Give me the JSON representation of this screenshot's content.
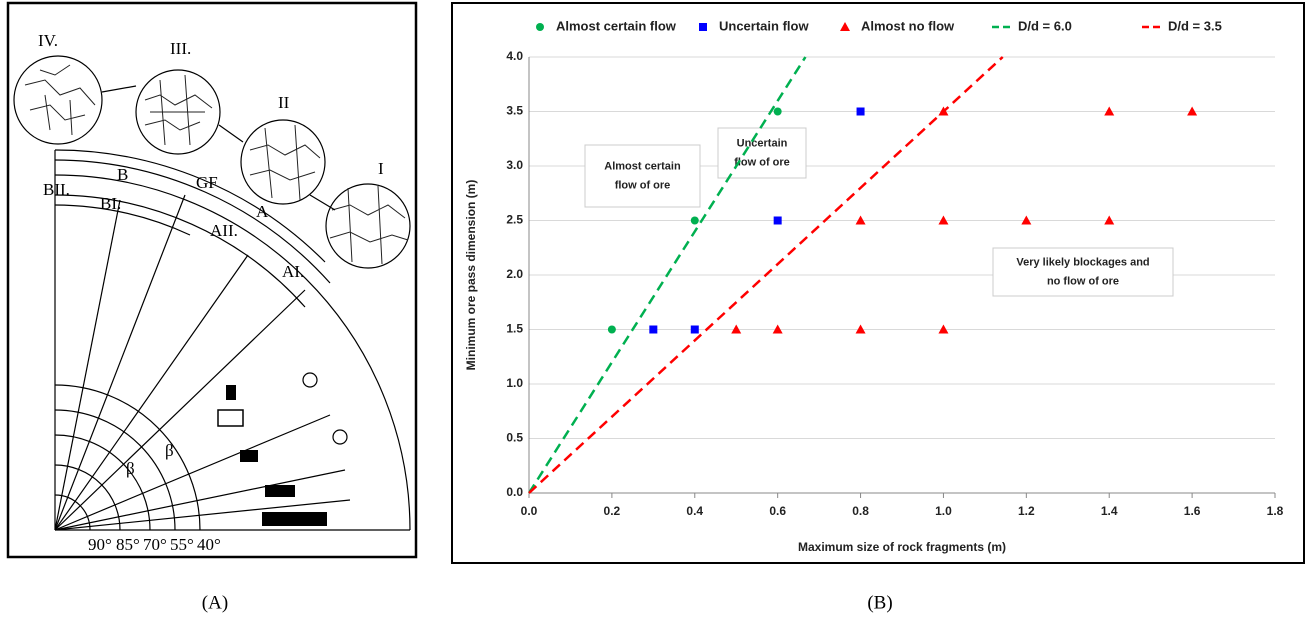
{
  "diagram": {
    "labels": [
      "IV.",
      "III.",
      "II",
      "I",
      "B",
      "GF",
      "A",
      "BII.",
      "BI.",
      "AII.",
      "AI.",
      "β",
      "β",
      "90°",
      "85°",
      "70°",
      "55°",
      "40°"
    ]
  },
  "captions": [
    "(A)",
    "(B)"
  ],
  "chart_data": {
    "type": "scatter",
    "x_label": "Maximum size of rock fragments (m)",
    "y_label": "Minimum ore pass dimension (m)",
    "xlim": [
      0,
      1.8
    ],
    "xticks": [
      {
        "value": 0,
        "label": "0.0"
      },
      0.2,
      0.4,
      0.6,
      0.8,
      {
        "value": 1,
        "label": "1.0"
      },
      1.2,
      1.4,
      1.6,
      1.8
    ],
    "ylim": [
      0,
      4
    ],
    "yticks": [
      {
        "value": 0,
        "label": "0.0"
      },
      0.5,
      {
        "value": 1,
        "label": "1.0"
      },
      1.5,
      {
        "value": 2,
        "label": "2.0"
      },
      2.5,
      {
        "value": 3,
        "label": "3.0"
      },
      3.5,
      {
        "value": 4,
        "label": "4.0"
      }
    ],
    "grid": true,
    "legend": "top",
    "series": [
      {
        "name": "Almost certain flow",
        "color": "#00b050",
        "marker": "circle",
        "x": [
          0.2,
          0.4,
          0.6
        ],
        "values": [
          1.5,
          2.5,
          3.5
        ]
      },
      {
        "name": "Uncertain flow",
        "color": "#0000ff",
        "marker": "square",
        "x": [
          0.3,
          0.4,
          0.6,
          0.8
        ],
        "values": [
          1.5,
          1.5,
          2.5,
          3.5
        ]
      },
      {
        "name": "Almost no flow",
        "color": "#ff0000",
        "marker": "triangle",
        "x": [
          0.5,
          0.6,
          0.8,
          1.0,
          0.8,
          1.0,
          1.2,
          1.4,
          1.0,
          1.4,
          1.6
        ],
        "values": [
          1.5,
          1.5,
          1.5,
          1.5,
          2.5,
          2.5,
          2.5,
          2.5,
          3.5,
          3.5,
          3.5
        ]
      },
      {
        "name": "D/d = 6.0",
        "color": "#00b050",
        "marker": "dashed-line",
        "x": [
          0,
          0.667
        ],
        "values": [
          0,
          4
        ]
      },
      {
        "name": "D/d = 3.5",
        "color": "#ff0000",
        "marker": "dashed-line",
        "x": [
          0,
          1.143
        ],
        "values": [
          0,
          4
        ]
      }
    ],
    "annotations": [
      {
        "lines": [
          "Almost certain",
          "flow of ore"
        ]
      },
      {
        "lines": [
          "Uncertain",
          "flow of ore"
        ]
      },
      {
        "lines": [
          "Very likely blockages and",
          "no flow of ore"
        ]
      }
    ]
  }
}
